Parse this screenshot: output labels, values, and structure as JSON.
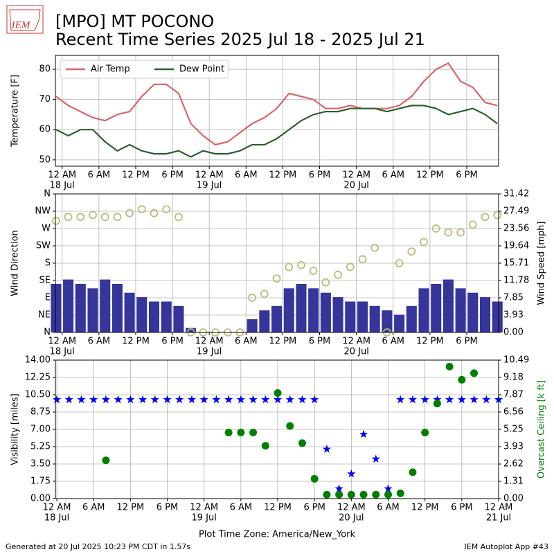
{
  "header": {
    "logo": "IEM",
    "title": "[MPO] MT POCONO",
    "subtitle": "Recent Time Series 2025 Jul 18 - 2025 Jul 21"
  },
  "footer": {
    "left": "Generated at 20 Jul 2025 10:23 PM CDT in 1.57s",
    "right": "IEM Autoplot App #43"
  },
  "chart_data": [
    {
      "type": "line",
      "ylabel": "Temperature [F]",
      "grid": true,
      "legend": "upper left",
      "xlim": [
        -1.1,
        71.2
      ],
      "xticks": [
        {
          "value": 0,
          "label": "12 AM"
        },
        {
          "value": 6,
          "label": "6 AM"
        },
        {
          "value": 12,
          "label": "12 PM"
        },
        {
          "value": 18,
          "label": "6 PM"
        },
        {
          "value": 24,
          "label": "12 AM"
        },
        {
          "value": 30,
          "label": "6 AM"
        },
        {
          "value": 36,
          "label": "12 PM"
        },
        {
          "value": 42,
          "label": "6 PM"
        },
        {
          "value": 48,
          "label": "12 AM"
        },
        {
          "value": 54,
          "label": "6 AM"
        },
        {
          "value": 60,
          "label": "12 PM"
        },
        {
          "value": 66,
          "label": "6 PM"
        }
      ],
      "date_labels": [
        {
          "value": 0,
          "label": "18 Jul"
        },
        {
          "value": 24,
          "label": "19 Jul"
        },
        {
          "value": 48,
          "label": "20 Jul"
        }
      ],
      "ylim": [
        47.9,
        84.6
      ],
      "yticks": [
        50,
        60,
        70,
        80
      ],
      "series": [
        {
          "name": "Air Temp",
          "type": "line",
          "color": "#d9646a",
          "x": [
            -1,
            1,
            3,
            5,
            7,
            9,
            11,
            13,
            15,
            17,
            19,
            21,
            23,
            25,
            27,
            29,
            31,
            33,
            35,
            37,
            39,
            41,
            43,
            45,
            47,
            49,
            51,
            53,
            55,
            57,
            59,
            61,
            63,
            65,
            67,
            69,
            71
          ],
          "values": [
            71,
            68,
            66,
            64,
            63,
            65,
            66,
            71,
            75,
            75,
            72,
            62,
            58,
            55,
            56,
            59,
            62,
            64,
            67,
            72,
            71,
            70,
            67,
            67,
            68,
            67,
            67,
            67,
            68,
            71,
            76,
            80,
            82,
            76,
            74,
            69,
            68
          ]
        },
        {
          "name": "Dew Point",
          "type": "line",
          "color": "#2e5e2e",
          "x": [
            -1,
            1,
            3,
            5,
            7,
            9,
            11,
            13,
            15,
            17,
            19,
            21,
            23,
            25,
            27,
            29,
            31,
            33,
            35,
            37,
            39,
            41,
            43,
            45,
            47,
            49,
            51,
            53,
            55,
            57,
            59,
            61,
            63,
            65,
            67,
            69,
            71
          ],
          "values": [
            60,
            58,
            60,
            60,
            56,
            53,
            55,
            53,
            52,
            52,
            53,
            51,
            53,
            52,
            52,
            53,
            55,
            55,
            57,
            60,
            63,
            65,
            66,
            66,
            67,
            67,
            67,
            66,
            67,
            68,
            68,
            67,
            65,
            66,
            67,
            65,
            62
          ]
        }
      ]
    },
    {
      "type": "scatter",
      "ylabel": "Wind Direction",
      "y2label": "Wind Speed [mph]",
      "grid": true,
      "xlim": [
        -1.1,
        71.2
      ],
      "xticks": [
        {
          "value": 0,
          "label": "12 AM"
        },
        {
          "value": 6,
          "label": "6 AM"
        },
        {
          "value": 12,
          "label": "12 PM"
        },
        {
          "value": 18,
          "label": "6 PM"
        },
        {
          "value": 24,
          "label": "12 AM"
        },
        {
          "value": 30,
          "label": "6 AM"
        },
        {
          "value": 36,
          "label": "12 PM"
        },
        {
          "value": 42,
          "label": "6 PM"
        },
        {
          "value": 48,
          "label": "12 AM"
        },
        {
          "value": 54,
          "label": "6 AM"
        },
        {
          "value": 60,
          "label": "12 PM"
        },
        {
          "value": 66,
          "label": "6 PM"
        }
      ],
      "date_labels": [
        {
          "value": 0,
          "label": "18 Jul"
        },
        {
          "value": 24,
          "label": "19 Jul"
        },
        {
          "value": 48,
          "label": "20 Jul"
        }
      ],
      "ylim": [
        0,
        360
      ],
      "yticks": [
        {
          "value": 0,
          "label": "N"
        },
        {
          "value": 45,
          "label": "NE"
        },
        {
          "value": 90,
          "label": "E"
        },
        {
          "value": 135,
          "label": "SE"
        },
        {
          "value": 180,
          "label": "S"
        },
        {
          "value": 225,
          "label": "SW"
        },
        {
          "value": 270,
          "label": "W"
        },
        {
          "value": 315,
          "label": "NW"
        },
        {
          "value": 360,
          "label": "N"
        }
      ],
      "y2lim": [
        0,
        31.42
      ],
      "y2ticks": [
        {
          "value": 0,
          "label": "0.00"
        },
        3.93,
        7.85,
        11.78,
        15.71,
        19.64,
        23.56,
        27.49,
        31.42
      ],
      "series": [
        {
          "type": "bar",
          "axis": "y2",
          "color": "#35359a",
          "x": [
            -1,
            1,
            3,
            5,
            7,
            9,
            11,
            13,
            15,
            17,
            19,
            21,
            23,
            25,
            27,
            29,
            31,
            33,
            35,
            37,
            39,
            41,
            43,
            45,
            47,
            49,
            51,
            53,
            55,
            57,
            59,
            61,
            63,
            65,
            67,
            69,
            71
          ],
          "values": [
            11,
            12,
            11,
            10,
            12,
            11,
            9,
            8,
            7,
            7,
            6,
            1,
            0,
            0,
            0,
            0,
            3,
            5,
            6,
            10,
            11,
            10,
            9,
            8,
            7,
            7,
            6,
            5,
            4,
            6,
            10,
            11,
            12,
            10,
            9,
            8,
            7
          ]
        },
        {
          "type": "scatter",
          "marker": "hollow-circle",
          "color": "#bdbb7a",
          "x": [
            -1,
            1,
            3,
            5,
            7,
            9,
            11,
            13,
            15,
            17,
            19,
            21,
            23,
            25,
            27,
            29,
            31,
            33,
            35,
            37,
            39,
            41,
            43,
            45,
            47,
            49,
            51,
            53,
            55,
            57,
            59,
            61,
            63,
            65,
            67,
            69,
            71
          ],
          "values": [
            290,
            300,
            300,
            305,
            300,
            300,
            310,
            320,
            310,
            320,
            300,
            0,
            0,
            0,
            0,
            0,
            90,
            100,
            140,
            170,
            175,
            160,
            130,
            150,
            170,
            190,
            220,
            0,
            180,
            210,
            235,
            270,
            260,
            260,
            280,
            300,
            305
          ]
        }
      ]
    },
    {
      "type": "scatter",
      "ylabel": "Visibility [miles]",
      "y2label": "Overcast Ceiling [k ft]",
      "y2label_color": "#008000",
      "grid": true,
      "xlabel": "Plot Time Zone: America/New_York",
      "xlim": [
        -0.23,
        72
      ],
      "xticks": [
        {
          "value": 0,
          "label": "12 AM"
        },
        {
          "value": 6,
          "label": "6 AM"
        },
        {
          "value": 12,
          "label": "12 PM"
        },
        {
          "value": 18,
          "label": "6 PM"
        },
        {
          "value": 24,
          "label": "12 AM"
        },
        {
          "value": 30,
          "label": "6 AM"
        },
        {
          "value": 36,
          "label": "12 PM"
        },
        {
          "value": 42,
          "label": "6 PM"
        },
        {
          "value": 48,
          "label": "12 AM"
        },
        {
          "value": 54,
          "label": "6 AM"
        },
        {
          "value": 60,
          "label": "12 PM"
        },
        {
          "value": 66,
          "label": "6 PM"
        },
        {
          "value": 72,
          "label": "12 AM"
        }
      ],
      "date_labels": [
        {
          "value": 0,
          "label": "18 Jul"
        },
        {
          "value": 24,
          "label": "19 Jul"
        },
        {
          "value": 48,
          "label": "20 Jul"
        },
        {
          "value": 72,
          "label": "21 Jul"
        }
      ],
      "ylim": [
        0,
        14
      ],
      "yticks": [
        {
          "value": 0,
          "label": "0.00"
        },
        1.75,
        {
          "value": 3.5,
          "label": "3.50"
        },
        5.25,
        {
          "value": 7,
          "label": "7.00"
        },
        8.75,
        {
          "value": 10.5,
          "label": "10.50"
        },
        12.25,
        {
          "value": 14,
          "label": "14.00"
        }
      ],
      "y2lim": [
        0,
        10.49
      ],
      "y2ticks": [
        {
          "value": 0,
          "label": "0.00"
        },
        1.31,
        2.62,
        3.93,
        5.25,
        6.56,
        7.87,
        9.18,
        10.49
      ],
      "series": [
        {
          "type": "scatter",
          "marker": "star",
          "color": "#0000ff",
          "x": [
            0,
            2,
            4,
            6,
            8,
            10,
            12,
            14,
            16,
            18,
            20,
            22,
            24,
            26,
            28,
            30,
            32,
            34,
            36,
            38,
            40,
            42,
            44,
            46,
            48,
            50,
            52,
            54,
            56,
            58,
            60,
            62,
            64,
            66,
            68,
            70,
            72
          ],
          "values": [
            10,
            10,
            10,
            10,
            10,
            10,
            10,
            10,
            10,
            10,
            10,
            10,
            10,
            10,
            10,
            10,
            10,
            10,
            10,
            10,
            10,
            10,
            5,
            1,
            2.5,
            6.5,
            4,
            1,
            10,
            10,
            10,
            10,
            10,
            10,
            10,
            10,
            10
          ]
        },
        {
          "type": "scatter",
          "marker": "circle",
          "axis": "y2",
          "color": "#008000",
          "x": [
            0,
            2,
            4,
            6,
            8,
            10,
            12,
            14,
            16,
            18,
            20,
            22,
            24,
            26,
            28,
            30,
            32,
            34,
            36,
            38,
            40,
            42,
            44,
            46,
            48,
            50,
            52,
            54,
            56,
            58,
            60,
            62,
            64,
            66,
            68,
            70,
            72
          ],
          "values": [
            null,
            null,
            null,
            null,
            2.9,
            null,
            null,
            null,
            null,
            null,
            null,
            null,
            null,
            null,
            5.0,
            5.0,
            5.0,
            4.0,
            8.0,
            5.5,
            4.2,
            1.5,
            0.3,
            0.3,
            0.3,
            0.3,
            0.3,
            0.3,
            0.4,
            2.0,
            5.0,
            7.2,
            10.0,
            9.0,
            9.5,
            null,
            null
          ]
        }
      ]
    }
  ]
}
